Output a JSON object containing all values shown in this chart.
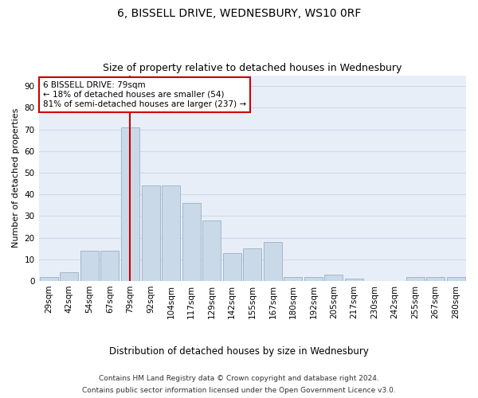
{
  "title1": "6, BISSELL DRIVE, WEDNESBURY, WS10 0RF",
  "title2": "Size of property relative to detached houses in Wednesbury",
  "xlabel": "Distribution of detached houses by size in Wednesbury",
  "ylabel": "Number of detached properties",
  "categories": [
    "29sqm",
    "42sqm",
    "54sqm",
    "67sqm",
    "79sqm",
    "92sqm",
    "104sqm",
    "117sqm",
    "129sqm",
    "142sqm",
    "155sqm",
    "167sqm",
    "180sqm",
    "192sqm",
    "205sqm",
    "217sqm",
    "230sqm",
    "242sqm",
    "255sqm",
    "267sqm",
    "280sqm"
  ],
  "values": [
    2,
    4,
    14,
    14,
    71,
    44,
    44,
    36,
    28,
    13,
    15,
    18,
    2,
    2,
    3,
    1,
    0,
    0,
    2,
    2,
    2
  ],
  "bar_color": "#c9d9e8",
  "bar_edge_color": "#a0b8cc",
  "highlight_index": 4,
  "highlight_line_color": "#cc0000",
  "annotation_text": "6 BISSELL DRIVE: 79sqm\n← 18% of detached houses are smaller (54)\n81% of semi-detached houses are larger (237) →",
  "annotation_box_color": "#ffffff",
  "annotation_box_edge": "#cc0000",
  "ylim": [
    0,
    95
  ],
  "yticks": [
    0,
    10,
    20,
    30,
    40,
    50,
    60,
    70,
    80,
    90
  ],
  "grid_color": "#d0d8e8",
  "bg_color": "#e8eef8",
  "footer1": "Contains HM Land Registry data © Crown copyright and database right 2024.",
  "footer2": "Contains public sector information licensed under the Open Government Licence v3.0.",
  "title1_fontsize": 10,
  "title2_fontsize": 9,
  "xlabel_fontsize": 8.5,
  "ylabel_fontsize": 8,
  "tick_fontsize": 7.5,
  "annotation_fontsize": 7.5,
  "footer_fontsize": 6.5
}
